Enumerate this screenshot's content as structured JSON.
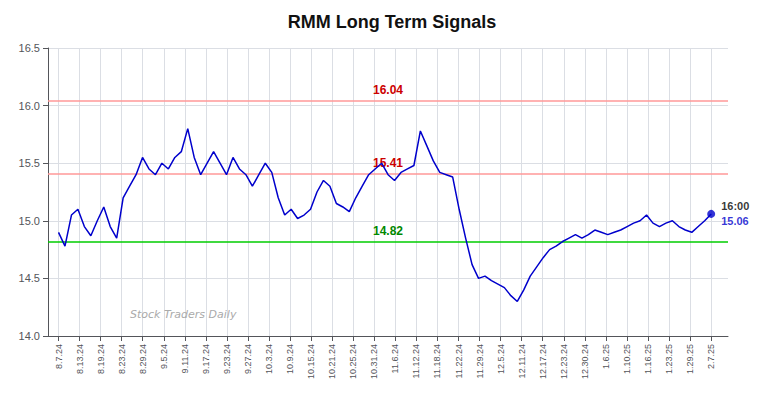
{
  "chart_data": {
    "type": "line",
    "title": "RMM Long Term Signals",
    "x": [
      0,
      0.3069,
      0.6139,
      0.9208,
      1.2277,
      1.5347,
      1.8416,
      2.1485,
      2.4554,
      2.7624,
      3.0693,
      3.3762,
      3.6832,
      3.9901,
      4.297,
      4.604,
      4.9109,
      5.2178,
      5.5248,
      5.8317,
      6.1386,
      6.4455,
      6.7525,
      7.0594,
      7.3663,
      7.6733,
      7.9802,
      8.2871,
      8.5941,
      8.901,
      9.2079,
      9.5149,
      9.8218,
      10.1287,
      10.4356,
      10.7426,
      11.0495,
      11.3564,
      11.6634,
      11.9703,
      12.2772,
      12.5842,
      12.8911,
      13.198,
      13.505,
      13.8119,
      14.1188,
      14.4257,
      14.7327,
      15.0396,
      15.3465,
      15.6535,
      15.9604,
      16.2673,
      16.5743,
      16.8812,
      17.1881,
      17.495,
      17.802,
      18.1089,
      18.4158,
      18.7228,
      19.0297,
      19.3366,
      19.6436,
      19.9505,
      20.2574,
      20.5644,
      20.8713,
      21.1782,
      21.4851,
      21.7921,
      22.099,
      22.4059,
      22.7129,
      23.0198,
      23.3267,
      23.6337,
      23.9406,
      24.2475,
      24.5545,
      24.8614,
      25.1683,
      25.4752,
      25.7822,
      26.0891,
      26.396,
      26.703,
      27.0099,
      27.3168,
      27.6238,
      27.9307,
      28.2376,
      28.5446,
      28.8515,
      29.1584,
      29.4653,
      29.7723,
      30.0792,
      30.3861,
      30.6931,
      31
    ],
    "values": [
      14.9,
      14.78,
      15.05,
      15.1,
      14.95,
      14.87,
      15.0,
      15.12,
      14.95,
      14.85,
      15.2,
      15.3,
      15.4,
      15.55,
      15.45,
      15.4,
      15.5,
      15.45,
      15.55,
      15.6,
      15.8,
      15.55,
      15.4,
      15.5,
      15.6,
      15.5,
      15.4,
      15.55,
      15.45,
      15.4,
      15.3,
      15.4,
      15.5,
      15.42,
      15.2,
      15.05,
      15.1,
      15.02,
      15.05,
      15.1,
      15.25,
      15.35,
      15.3,
      15.15,
      15.12,
      15.08,
      15.2,
      15.3,
      15.4,
      15.45,
      15.5,
      15.4,
      15.35,
      15.42,
      15.45,
      15.48,
      15.78,
      15.65,
      15.52,
      15.42,
      15.4,
      15.38,
      15.1,
      14.85,
      14.62,
      14.5,
      14.52,
      14.48,
      14.45,
      14.42,
      14.35,
      14.3,
      14.4,
      14.52,
      14.6,
      14.68,
      14.75,
      14.78,
      14.82,
      14.85,
      14.88,
      14.85,
      14.88,
      14.92,
      14.9,
      14.88,
      14.9,
      14.92,
      14.95,
      14.98,
      15.0,
      15.05,
      14.98,
      14.95,
      14.98,
      15.0,
      14.95,
      14.92,
      14.9,
      14.95,
      15.0,
      15.06
    ],
    "color": "#0000cc",
    "xlim": [
      -0.5,
      31.8
    ],
    "xticks": [
      {
        "value": 0,
        "label": "8.7.24"
      },
      {
        "value": 1,
        "label": "8.13.24"
      },
      {
        "value": 2,
        "label": "8.19.24"
      },
      {
        "value": 3,
        "label": "8.23.24"
      },
      {
        "value": 4,
        "label": "8.29.24"
      },
      {
        "value": 5,
        "label": "9.5.24"
      },
      {
        "value": 6,
        "label": "9.11.24"
      },
      {
        "value": 7,
        "label": "9.17.24"
      },
      {
        "value": 8,
        "label": "9.23.24"
      },
      {
        "value": 9,
        "label": "9.27.24"
      },
      {
        "value": 10,
        "label": "10.3.24"
      },
      {
        "value": 11,
        "label": "10.9.24"
      },
      {
        "value": 12,
        "label": "10.15.24"
      },
      {
        "value": 13,
        "label": "10.21.24"
      },
      {
        "value": 14,
        "label": "10.25.24"
      },
      {
        "value": 15,
        "label": "10.31.24"
      },
      {
        "value": 16,
        "label": "11.6.24"
      },
      {
        "value": 17,
        "label": "11.12.24"
      },
      {
        "value": 18,
        "label": "11.18.24"
      },
      {
        "value": 19,
        "label": "11.22.24"
      },
      {
        "value": 20,
        "label": "11.29.24"
      },
      {
        "value": 21,
        "label": "12.5.24"
      },
      {
        "value": 22,
        "label": "12.11.24"
      },
      {
        "value": 23,
        "label": "12.17.24"
      },
      {
        "value": 24,
        "label": "12.23.24"
      },
      {
        "value": 25,
        "label": "12.30.24"
      },
      {
        "value": 26,
        "label": "1.6.25"
      },
      {
        "value": 27,
        "label": "1.10.25"
      },
      {
        "value": 28,
        "label": "1.16.25"
      },
      {
        "value": 29,
        "label": "1.23.25"
      },
      {
        "value": 30,
        "label": "1.29.25"
      },
      {
        "value": 31,
        "label": "2.7.25"
      }
    ],
    "ylim": [
      14.0,
      16.5
    ],
    "yticks": [
      {
        "value": 14,
        "label": "14.0"
      },
      14.5,
      {
        "value": 15,
        "label": "15.0"
      },
      15.5,
      {
        "value": 16,
        "label": "16.0"
      },
      16.5
    ],
    "grid": true,
    "hlines": [
      {
        "value": 16.04,
        "color": "#ff9999",
        "label": "16.04",
        "label_color": "#cc0000"
      },
      {
        "value": 15.41,
        "color": "#ff9999",
        "label": "15.41",
        "label_color": "#cc0000"
      },
      {
        "value": 14.82,
        "color": "#00cc00",
        "label": "14.82",
        "label_color": "#008800"
      }
    ],
    "annotations": [
      {
        "text": "16:00",
        "x": 31,
        "y": 15.06,
        "color": "#000000"
      },
      {
        "text": "15.06",
        "x": 31,
        "y": 15.06,
        "color": "#0000cc"
      }
    ],
    "watermark": {
      "text": "Stock Traders Daily",
      "color": "#aaaaaa"
    }
  }
}
